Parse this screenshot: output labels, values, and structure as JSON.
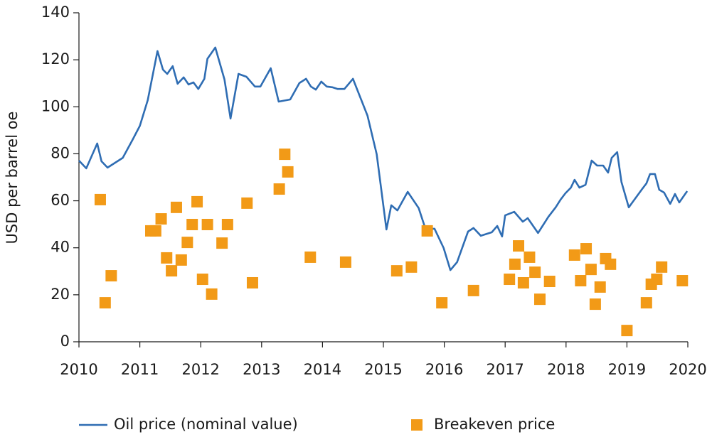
{
  "chart_data": {
    "type": "line",
    "ylabel": "USD per barrel oe",
    "xlim": [
      2010,
      2020
    ],
    "xticks": [
      2010,
      2011,
      2012,
      2013,
      2014,
      2015,
      2016,
      2017,
      2018,
      2019,
      2020
    ],
    "ylim": [
      0,
      140
    ],
    "yticks": [
      0,
      20,
      40,
      60,
      80,
      100,
      120,
      140
    ],
    "legend": "bottom",
    "series": [
      {
        "name": "Oil price (nominal value)",
        "type": "line",
        "color": "#2f6db3",
        "x": [
          2010.0,
          2010.12,
          2010.3,
          2010.37,
          2010.47,
          2010.72,
          2010.88,
          2011.0,
          2011.13,
          2011.29,
          2011.38,
          2011.45,
          2011.54,
          2011.62,
          2011.72,
          2011.8,
          2011.88,
          2011.96,
          2012.06,
          2012.11,
          2012.24,
          2012.39,
          2012.49,
          2012.62,
          2012.75,
          2012.89,
          2012.98,
          2013.15,
          2013.28,
          2013.47,
          2013.62,
          2013.73,
          2013.81,
          2013.89,
          2013.98,
          2014.07,
          2014.16,
          2014.25,
          2014.36,
          2014.5,
          2014.74,
          2014.89,
          2015.05,
          2015.13,
          2015.23,
          2015.4,
          2015.58,
          2015.69,
          2015.84,
          2015.99,
          2016.1,
          2016.21,
          2016.39,
          2016.48,
          2016.6,
          2016.78,
          2016.87,
          2016.95,
          2017.0,
          2017.15,
          2017.29,
          2017.37,
          2017.54,
          2017.71,
          2017.83,
          2017.91,
          2017.99,
          2018.08,
          2018.14,
          2018.22,
          2018.32,
          2018.42,
          2018.51,
          2018.61,
          2018.69,
          2018.75,
          2018.84,
          2018.91,
          2019.03,
          2019.25,
          2019.32,
          2019.38,
          2019.46,
          2019.53,
          2019.61,
          2019.71,
          2019.79,
          2019.86,
          2019.99
        ],
        "values": [
          77.1,
          73.8,
          84.4,
          76.8,
          74.1,
          78.3,
          85.9,
          91.9,
          102.8,
          123.7,
          115.8,
          114.0,
          117.3,
          109.8,
          112.5,
          109.5,
          110.4,
          107.6,
          111.9,
          120.4,
          125.2,
          111.6,
          95.0,
          114.0,
          112.8,
          108.6,
          108.6,
          116.4,
          102.2,
          103.1,
          110.1,
          111.9,
          108.6,
          107.3,
          110.7,
          108.6,
          108.3,
          107.6,
          107.6,
          111.9,
          96.2,
          79.8,
          47.8,
          58.1,
          55.9,
          63.8,
          56.9,
          48.1,
          48.1,
          39.9,
          30.5,
          33.9,
          46.9,
          48.4,
          45.1,
          46.6,
          49.3,
          44.8,
          53.8,
          55.3,
          51.1,
          52.6,
          46.3,
          53.2,
          57.2,
          60.5,
          63.2,
          65.6,
          68.9,
          65.6,
          66.8,
          77.1,
          75.0,
          75.0,
          72.0,
          78.3,
          80.7,
          68.0,
          57.2,
          65.0,
          67.4,
          71.4,
          71.4,
          64.7,
          63.5,
          58.7,
          62.9,
          59.3,
          64.1
        ]
      },
      {
        "name": "Breakeven price",
        "type": "scatter",
        "color": "#f29a17",
        "x": [
          2010.35,
          2010.43,
          2010.53,
          2011.18,
          2011.26,
          2011.35,
          2011.44,
          2011.52,
          2011.6,
          2011.68,
          2011.78,
          2011.86,
          2011.94,
          2012.03,
          2012.11,
          2012.18,
          2012.35,
          2012.44,
          2012.76,
          2012.85,
          2013.29,
          2013.38,
          2013.43,
          2013.8,
          2014.38,
          2015.22,
          2015.46,
          2015.72,
          2015.96,
          2016.48,
          2017.07,
          2017.16,
          2017.22,
          2017.3,
          2017.4,
          2017.49,
          2017.57,
          2017.73,
          2018.14,
          2018.24,
          2018.33,
          2018.41,
          2018.48,
          2018.56,
          2018.65,
          2018.73,
          2019.0,
          2019.32,
          2019.4,
          2019.49,
          2019.57,
          2019.91
        ],
        "values": [
          60.5,
          16.6,
          28.1,
          47.2,
          47.2,
          52.3,
          35.7,
          30.2,
          57.2,
          34.8,
          42.3,
          49.9,
          59.6,
          26.6,
          49.9,
          20.3,
          42.0,
          49.9,
          59.0,
          25.1,
          65.0,
          79.8,
          72.3,
          36.0,
          33.9,
          30.2,
          31.8,
          47.2,
          16.6,
          21.8,
          26.6,
          33.0,
          40.8,
          25.1,
          36.0,
          29.6,
          18.1,
          25.7,
          36.9,
          26.0,
          39.6,
          30.8,
          16.0,
          23.3,
          35.4,
          33.0,
          4.8,
          16.6,
          24.5,
          26.6,
          31.8,
          26.0
        ]
      }
    ]
  }
}
